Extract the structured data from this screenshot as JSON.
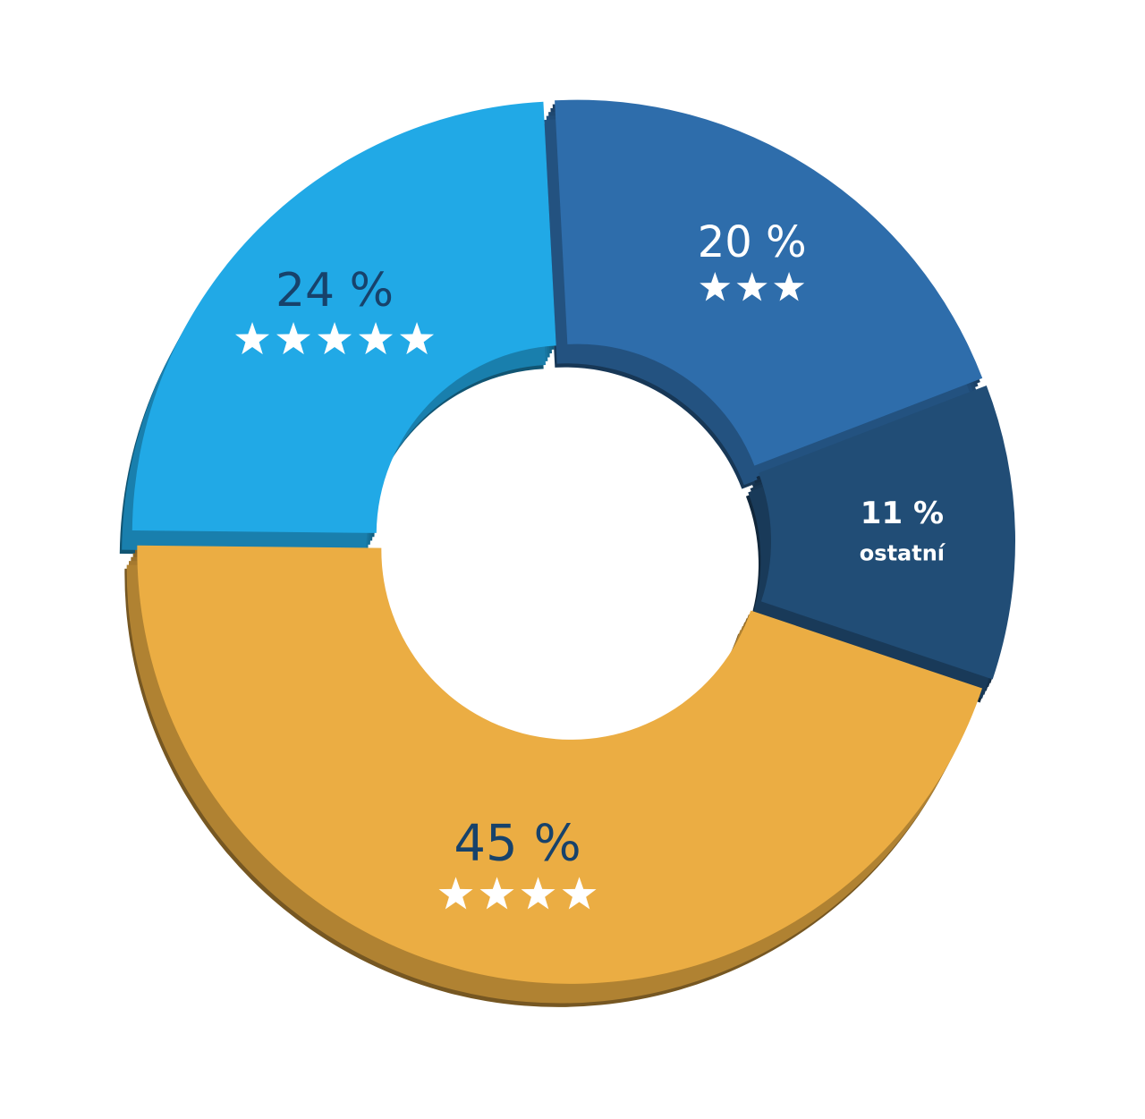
{
  "chart_data": {
    "type": "donut",
    "categories": [
      null,
      "ostatní",
      null,
      null
    ],
    "values": [
      20,
      11,
      45,
      24
    ],
    "value_labels": [
      "20 %",
      "11 %",
      "45 %",
      "24 %"
    ],
    "ratings": [
      3,
      null,
      4,
      5
    ],
    "colors": [
      "#2e6dab",
      "#214d76",
      "#ebad43",
      "#21a9e6"
    ],
    "label_colors": [
      "#ffffff",
      "#ffffff",
      "#17426b",
      "#17426b"
    ]
  }
}
